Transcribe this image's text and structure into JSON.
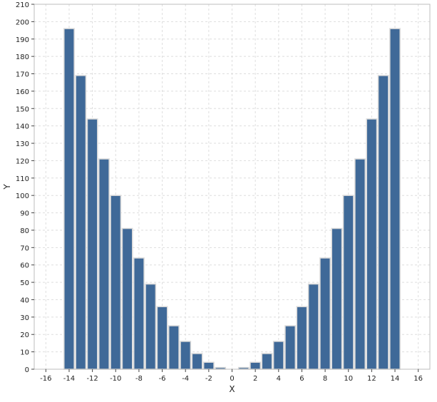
{
  "chart_data": {
    "type": "bar",
    "xlabel": "X",
    "ylabel": "Y",
    "xlim": [
      -17,
      17
    ],
    "ylim": [
      0,
      210
    ],
    "grid": true,
    "x_ticks": [
      -16,
      -14,
      -12,
      -10,
      -8,
      -6,
      -4,
      -2,
      0,
      2,
      4,
      6,
      8,
      10,
      12,
      14,
      16
    ],
    "y_ticks": [
      0,
      10,
      20,
      30,
      40,
      50,
      60,
      70,
      80,
      90,
      100,
      110,
      120,
      130,
      140,
      150,
      160,
      170,
      180,
      190,
      200,
      210
    ],
    "x": [
      -14,
      -13,
      -12,
      -11,
      -10,
      -9,
      -8,
      -7,
      -6,
      -5,
      -4,
      -3,
      -2,
      -1,
      0,
      1,
      2,
      3,
      4,
      5,
      6,
      7,
      8,
      9,
      10,
      11,
      12,
      13,
      14
    ],
    "values": [
      196,
      169,
      144,
      121,
      100,
      81,
      64,
      49,
      36,
      25,
      16,
      9,
      4,
      1,
      0,
      1,
      4,
      9,
      16,
      25,
      36,
      49,
      64,
      81,
      100,
      121,
      144,
      169,
      196
    ],
    "bar_color": "#3f6998",
    "bar_edge_color": "#d9d9d9",
    "grid_color": "#dedede",
    "frame_color": "#bcbcbc"
  }
}
